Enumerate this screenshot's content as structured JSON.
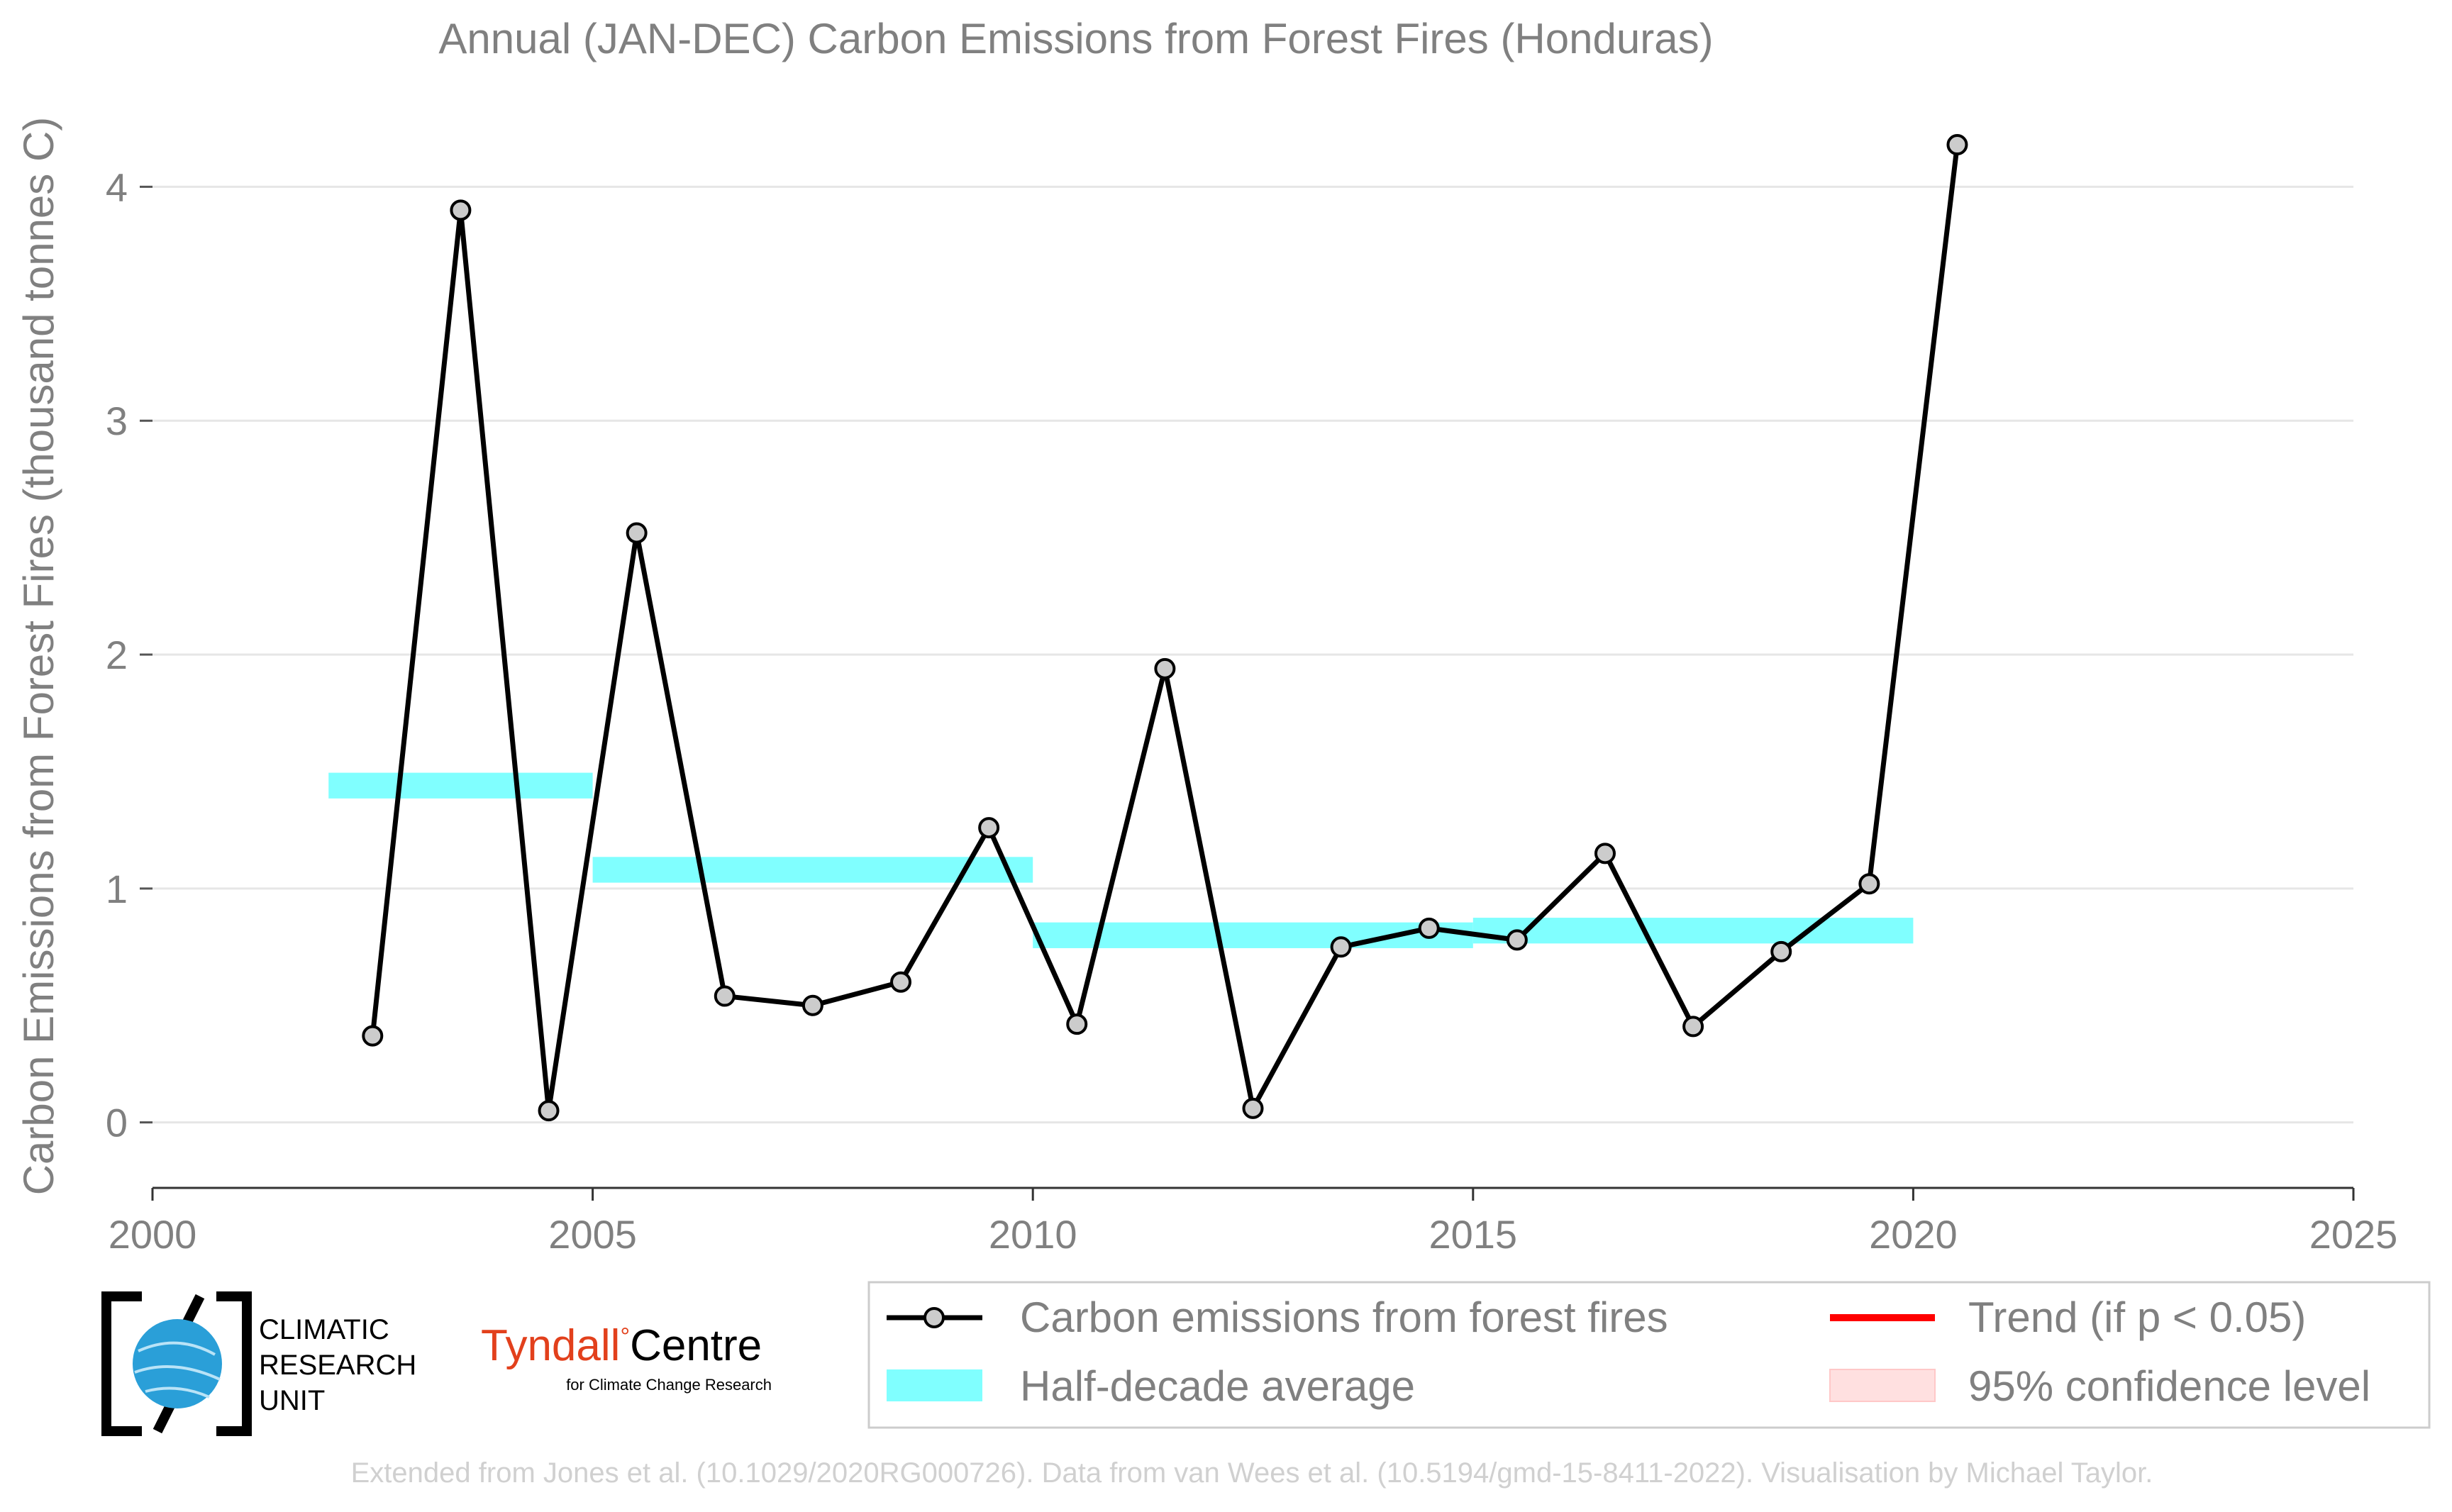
{
  "chart_data": {
    "type": "line",
    "title": "Annual (JAN-DEC) Carbon Emissions from Forest Fires (Honduras)",
    "ylabel": "Carbon Emissions from Forest Fires (thousand tonnes C)",
    "xlabel": "",
    "xlim": [
      2000,
      2025
    ],
    "ylim": [
      -0.28,
      4.45
    ],
    "xticks": [
      2000,
      2005,
      2010,
      2015,
      2020,
      2025
    ],
    "yticks": [
      0,
      1,
      2,
      3,
      4
    ],
    "grid": "horizontal",
    "legend_position": "bottom-right",
    "colors": {
      "line": "#000000",
      "marker_fill": "#cccccc",
      "half_decade": "#80ffff",
      "trend": "#ff0000",
      "confidence": "#ffe0e0",
      "grid": "#e6e6e6",
      "text": "#808080"
    },
    "series": [
      {
        "name": "Carbon emissions from forest fires",
        "x": [
          2002.5,
          2003.5,
          2004.5,
          2005.5,
          2006.5,
          2007.5,
          2008.5,
          2009.5,
          2010.5,
          2011.5,
          2012.5,
          2013.5,
          2014.5,
          2015.5,
          2016.5,
          2017.5,
          2018.5,
          2019.5,
          2020.5
        ],
        "values": [
          0.37,
          3.9,
          0.05,
          2.52,
          0.54,
          0.5,
          0.6,
          1.26,
          0.42,
          1.94,
          0.06,
          0.75,
          0.83,
          0.78,
          1.15,
          0.41,
          0.73,
          1.02,
          4.18
        ]
      }
    ],
    "half_decade_averages": [
      {
        "x_start": 2002,
        "x_end": 2005,
        "value": 1.44
      },
      {
        "x_start": 2005,
        "x_end": 2010,
        "value": 1.08
      },
      {
        "x_start": 2010,
        "x_end": 2015,
        "value": 0.8
      },
      {
        "x_start": 2015,
        "x_end": 2020,
        "value": 0.82
      }
    ],
    "legend": {
      "line": "Carbon emissions from forest fires",
      "half_decade": "Half-decade average",
      "trend": "Trend (if p < 0.05)",
      "confidence": "95% confidence level"
    }
  },
  "logos": {
    "cru_lines": [
      "CLIMATIC",
      "RESEARCH",
      "UNIT"
    ],
    "tyndall_word": "Tyndall",
    "tyndall_degree": "°",
    "tyndall_centre": "Centre",
    "tyndall_sub": "for Climate Change Research"
  },
  "credit": "Extended from Jones et al. (10.1029/2020RG000726). Data from van Wees et al. (10.5194/gmd-15-8411-2022). Visualisation by Michael Taylor."
}
